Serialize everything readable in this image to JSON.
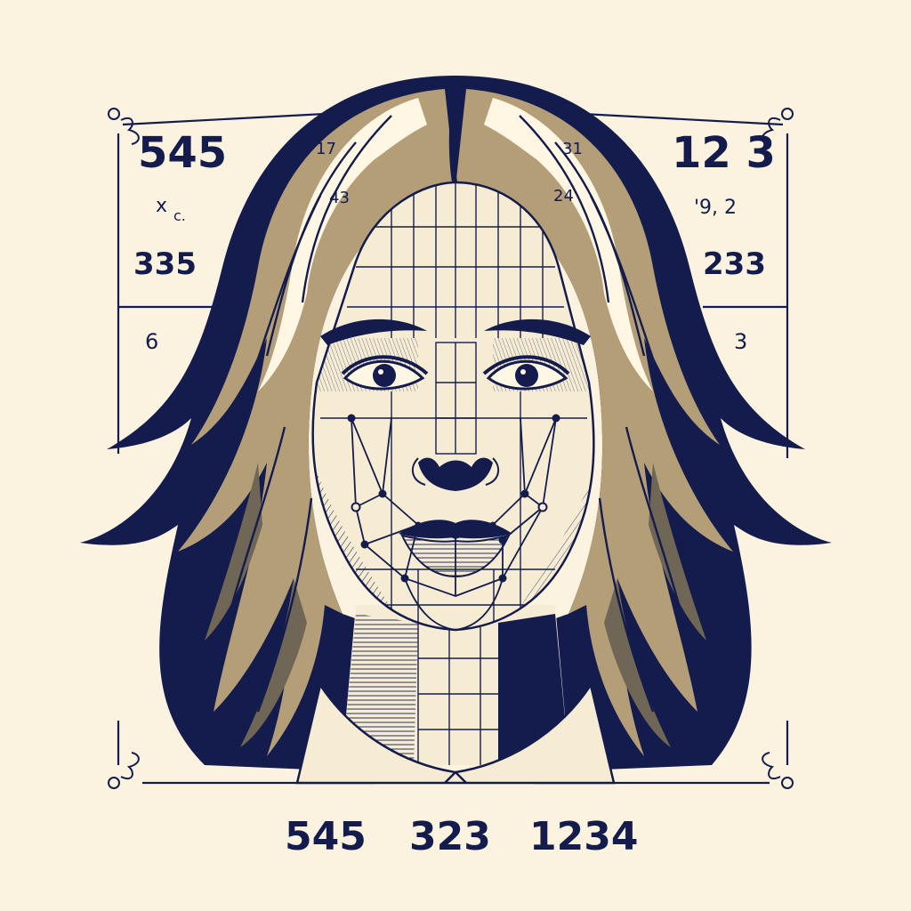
{
  "colors": {
    "background": "#fbf3df",
    "ink": "#141c4e",
    "skin": "#f6ecd3",
    "hair_light": "#b39e78",
    "hair_mid": "#6f6655",
    "cream": "#fff7e4"
  },
  "labels": {
    "left_top_number": "545",
    "left_mark": "x",
    "left_mark_suffix": "c.",
    "left_mid_number": "335",
    "left_low_number": "6",
    "forehead_left_top": "17",
    "forehead_left_bottom": "43",
    "forehead_right_top": "31",
    "forehead_right_bottom": "24",
    "right_top_number": "12 3",
    "right_small_mark": "'9, 2",
    "right_mid_number": "233",
    "right_low_number": "3",
    "bottom_numbers": [
      "545",
      "323",
      "1234"
    ]
  }
}
